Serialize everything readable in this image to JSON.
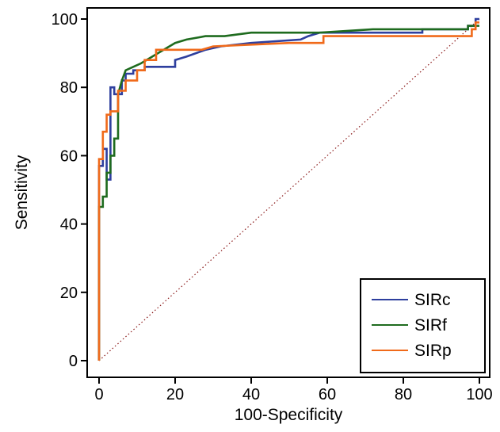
{
  "chart_data": {
    "type": "line",
    "xlabel": "100-Specificity",
    "ylabel": "Sensitivity",
    "xlim": [
      0,
      100
    ],
    "ylim": [
      0,
      100
    ],
    "xticks": [
      0,
      20,
      40,
      60,
      80,
      100
    ],
    "yticks": [
      0,
      20,
      40,
      60,
      80,
      100
    ],
    "grid": false,
    "legend_position": "bottom-right",
    "reference_line": {
      "x": [
        0,
        100
      ],
      "y": [
        0,
        100
      ],
      "style": "dotted",
      "color": "#8B1A1A"
    },
    "series": [
      {
        "name": "SIRc",
        "color": "#2E3F9E",
        "x": [
          0,
          0,
          1,
          1,
          2,
          2,
          3,
          3,
          4,
          4,
          6,
          6,
          7,
          7,
          9,
          9,
          12,
          12,
          20,
          20,
          23,
          28,
          32,
          40,
          53,
          55,
          58,
          85,
          85,
          97,
          97,
          99,
          99,
          100
        ],
        "y": [
          0,
          57,
          57,
          62,
          62,
          53,
          53,
          80,
          80,
          78,
          78,
          82,
          82,
          84,
          84,
          85,
          85,
          86,
          86,
          88,
          89,
          91,
          92,
          93,
          94,
          95,
          96,
          96,
          97,
          97,
          98,
          98,
          100,
          100
        ]
      },
      {
        "name": "SIRf",
        "color": "#1E6B1E",
        "x": [
          0,
          0,
          1,
          1,
          2,
          2,
          3,
          3,
          4,
          4,
          5,
          5,
          6,
          7,
          9,
          11,
          14,
          17,
          20,
          23,
          28,
          33,
          40,
          58,
          72,
          86,
          97,
          97,
          100
        ],
        "y": [
          0,
          45,
          45,
          48,
          48,
          55,
          55,
          60,
          60,
          65,
          65,
          78,
          82,
          85,
          86,
          87,
          89,
          91,
          93,
          94,
          95,
          95,
          96,
          96,
          97,
          97,
          97,
          98,
          98
        ]
      },
      {
        "name": "SIRp",
        "color": "#F06A1A",
        "x": [
          0,
          0,
          1,
          1,
          2,
          2,
          3,
          3,
          5,
          5,
          7,
          7,
          10,
          10,
          12,
          12,
          15,
          15,
          27,
          30,
          50,
          58,
          59,
          59,
          98,
          98,
          99,
          99,
          100
        ],
        "y": [
          0,
          59,
          59,
          67,
          67,
          72,
          72,
          73,
          73,
          79,
          79,
          82,
          82,
          85,
          85,
          88,
          88,
          91,
          91,
          92,
          93,
          93,
          93,
          95,
          95,
          97,
          97,
          99,
          99
        ]
      }
    ]
  }
}
